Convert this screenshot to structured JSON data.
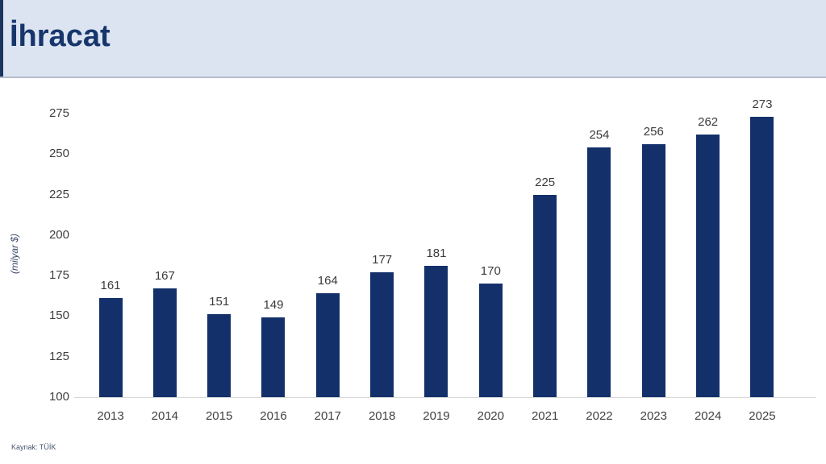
{
  "header": {
    "title": "İhracat"
  },
  "source": "Kaynak: TÜİK",
  "colors": {
    "header_bg": "#dce4f2",
    "header_border": "#b6bdcc",
    "accent_strip": "#1c355f",
    "title": "#16356b",
    "bar": "#13306a",
    "axis_line": "#d8d8d8",
    "tick_label": "#3f3f3f",
    "value_label": "#3b3b3b",
    "ylabel": "#3a4a66",
    "source": "#45536e"
  },
  "chart_data": {
    "type": "bar",
    "title": "İhracat",
    "categories": [
      "2013",
      "2014",
      "2015",
      "2016",
      "2017",
      "2018",
      "2019",
      "2020",
      "2021",
      "2022",
      "2023",
      "2024",
      "2025"
    ],
    "values": [
      161,
      167,
      151,
      149,
      164,
      177,
      181,
      170,
      225,
      254,
      256,
      262,
      273
    ],
    "xlabel": "",
    "ylabel": "(milyar $)",
    "ylim": [
      100,
      275
    ],
    "ytick_step": 25,
    "grid": false,
    "legend": "none",
    "value_labels": true
  }
}
